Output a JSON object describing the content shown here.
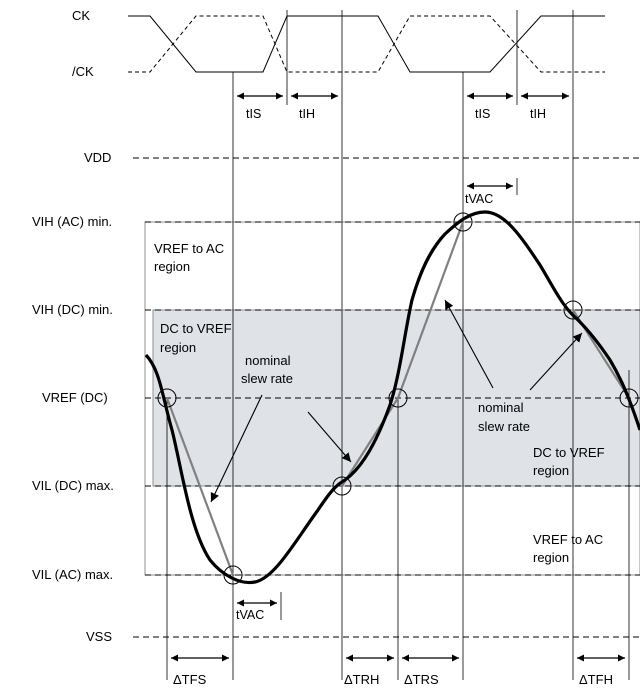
{
  "signals": {
    "ck": "CK",
    "ck_bar": "/CK"
  },
  "levels": {
    "vdd": "VDD",
    "vih_ac": "VIH (AC) min.",
    "vih_dc": "VIH (DC) min.",
    "vref": "VREF (DC)",
    "vil_dc": "VIL (DC) max.",
    "vil_ac": "VIL (AC) max.",
    "vss": "VSS"
  },
  "timing_labels": {
    "tis": "tIS",
    "tih": "tIH",
    "tvac": "tVAC",
    "dtfs": "ΔTFS",
    "dtrh": "ΔTRH",
    "dtrs": "ΔTRS",
    "dtfh": "ΔTFH"
  },
  "regions": {
    "vref_to_ac_1": "VREF to AC",
    "vref_to_ac_2": "region",
    "dc_to_vref_1": "DC to VREF",
    "dc_to_vref_2": "region"
  },
  "annotations": {
    "nominal": "nominal",
    "slew_rate": "slew rate"
  },
  "colors": {
    "dc_region_fill": "#dfe3e8",
    "nominal_line": "#808080",
    "signal": "#000000"
  }
}
